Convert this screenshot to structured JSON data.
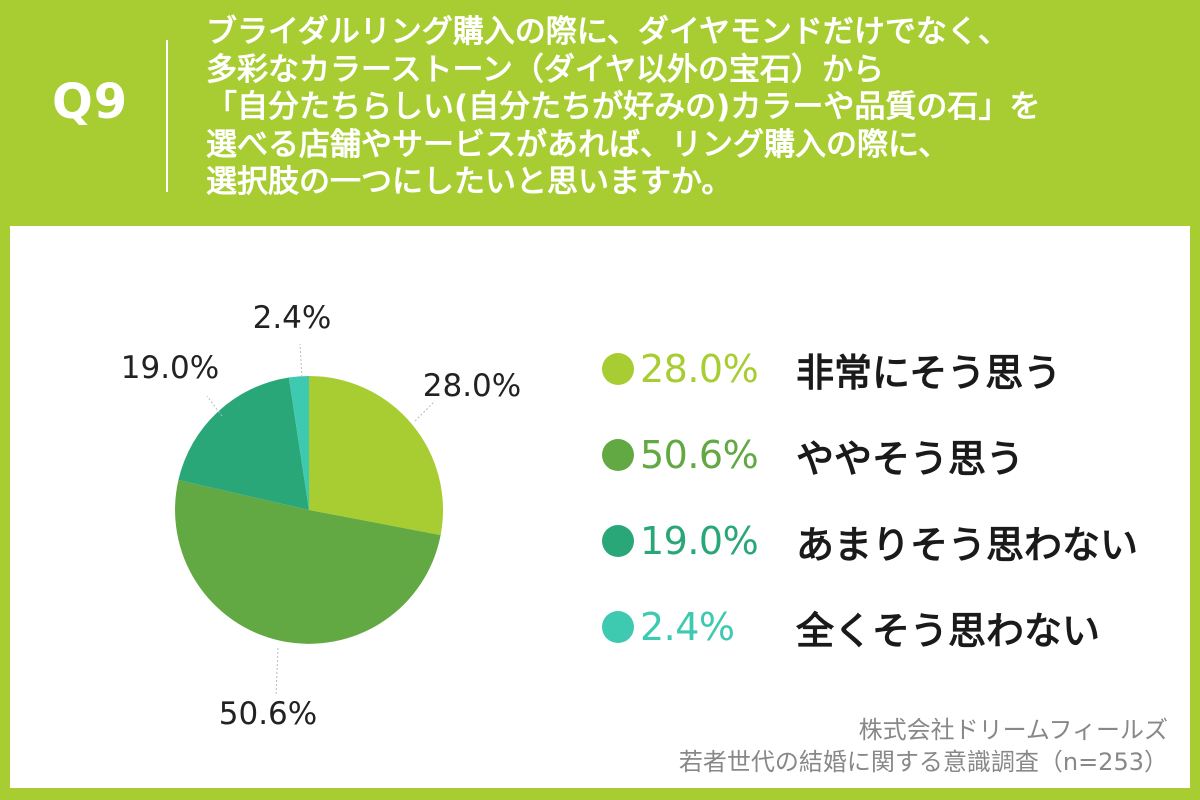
{
  "header": {
    "q_label": "Q9",
    "question_lines": [
      "ブライダルリング購入の際に、ダイヤモンドだけでなく、",
      "多彩なカラーストーン（ダイヤ以外の宝石）から",
      "「自分たちらしい(自分たちが好みの)カラーや品質の石」を",
      "選べる店舗やサービスがあれば、リング購入の際に、",
      "選択肢の一つにしたいと思いますか。"
    ]
  },
  "source": {
    "company": "株式会社ドリームフィールズ",
    "survey": "若者世代の結婚に関する意識調査（n=253）"
  },
  "colors": {
    "background": "#a8cd32",
    "panel": "#ffffff",
    "slice_1": "#a8cd32",
    "slice_2": "#62a843",
    "slice_3": "#29a778",
    "slice_4": "#3ec9b1"
  },
  "chart_data": {
    "type": "pie",
    "start": "12 o'clock",
    "direction": "clockwise",
    "legend_position": "right",
    "slices": [
      {
        "label": "非常にそう思う",
        "value": 28.0,
        "display": "28.0%",
        "color": "#a8cd32"
      },
      {
        "label": "ややそう思う",
        "value": 50.6,
        "display": "50.6%",
        "color": "#62a843"
      },
      {
        "label": "あまりそう思わない",
        "value": 19.0,
        "display": "19.0%",
        "color": "#29a778"
      },
      {
        "label": "全くそう思わない",
        "value": 2.4,
        "display": "2.4%",
        "color": "#3ec9b1"
      }
    ]
  }
}
